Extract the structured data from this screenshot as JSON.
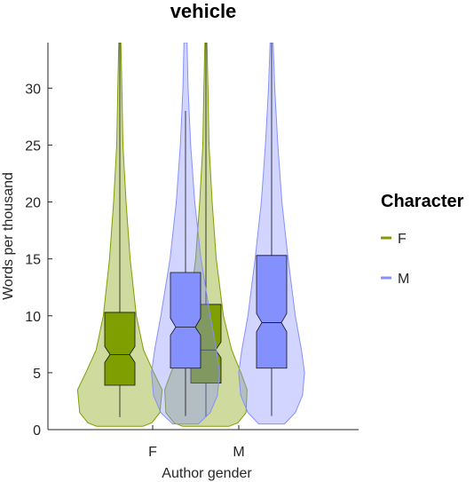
{
  "chart_data": {
    "type": "violin-box",
    "title": "vehicle",
    "xlabel": "Author gender",
    "ylabel": "Words per thousand",
    "categories": [
      "F",
      "M"
    ],
    "ylim": [
      0,
      34
    ],
    "yticks": [
      0,
      5,
      10,
      15,
      20,
      25,
      30
    ],
    "grid": false,
    "legend": {
      "title": "Character",
      "position": "right",
      "entries": [
        {
          "label": "F",
          "color": "#7f9f00"
        },
        {
          "label": "M",
          "color": "#8590ff"
        }
      ]
    },
    "series": [
      {
        "name": "F",
        "color": "#7f9f00",
        "fill": "#cbd98f",
        "stats": [
          {
            "category": "F",
            "min": 1.1,
            "q1": 3.9,
            "median": 6.6,
            "q3": 10.3,
            "max": 34,
            "notch_low": 5.9,
            "notch_high": 7.3,
            "violin_min": 0.3,
            "violin_max": 34,
            "violin": [
              [
                0.3,
                0.45
              ],
              [
                0.6,
                0.62
              ],
              [
                1.5,
                0.78
              ],
              [
                3.5,
                0.82
              ],
              [
                5,
                0.66
              ],
              [
                7,
                0.46
              ],
              [
                10,
                0.32
              ],
              [
                15,
                0.2
              ],
              [
                20,
                0.12
              ],
              [
                25,
                0.06
              ],
              [
                30,
                0.04
              ],
              [
                34,
                0.02
              ]
            ]
          },
          {
            "category": "M",
            "min": 1.1,
            "q1": 4.1,
            "median": 7.0,
            "q3": 11.0,
            "max": 34,
            "notch_low": 6.3,
            "notch_high": 7.7,
            "violin_min": 0.3,
            "violin_max": 34,
            "violin": [
              [
                0.3,
                0.45
              ],
              [
                0.6,
                0.62
              ],
              [
                1.5,
                0.78
              ],
              [
                3.5,
                0.8
              ],
              [
                5,
                0.68
              ],
              [
                7,
                0.5
              ],
              [
                10,
                0.34
              ],
              [
                15,
                0.2
              ],
              [
                20,
                0.12
              ],
              [
                25,
                0.06
              ],
              [
                30,
                0.04
              ],
              [
                34,
                0.02
              ]
            ]
          }
        ]
      },
      {
        "name": "M",
        "color": "#8590ff",
        "fill": "#c9cdf7",
        "stats": [
          {
            "category": "F",
            "min": 1.2,
            "q1": 5.4,
            "median": 9.0,
            "q3": 13.8,
            "max": 28.0,
            "notch_low": 8.3,
            "notch_high": 9.8,
            "violin_min": 0.5,
            "violin_max": 34,
            "violin": [
              [
                0.5,
                0.25
              ],
              [
                1.5,
                0.48
              ],
              [
                3,
                0.62
              ],
              [
                5,
                0.66
              ],
              [
                7,
                0.6
              ],
              [
                10,
                0.48
              ],
              [
                15,
                0.3
              ],
              [
                20,
                0.18
              ],
              [
                25,
                0.1
              ],
              [
                30,
                0.05
              ],
              [
                34,
                0.03
              ]
            ]
          },
          {
            "category": "M",
            "min": 1.2,
            "q1": 5.4,
            "median": 9.4,
            "q3": 15.3,
            "max": 34,
            "notch_low": 8.6,
            "notch_high": 10.2,
            "violin_min": 0.5,
            "violin_max": 34,
            "violin": [
              [
                0.5,
                0.25
              ],
              [
                1.5,
                0.46
              ],
              [
                3,
                0.6
              ],
              [
                5,
                0.64
              ],
              [
                7,
                0.58
              ],
              [
                10,
                0.46
              ],
              [
                15,
                0.32
              ],
              [
                20,
                0.2
              ],
              [
                25,
                0.12
              ],
              [
                30,
                0.06
              ],
              [
                34,
                0.03
              ]
            ]
          }
        ]
      }
    ]
  }
}
